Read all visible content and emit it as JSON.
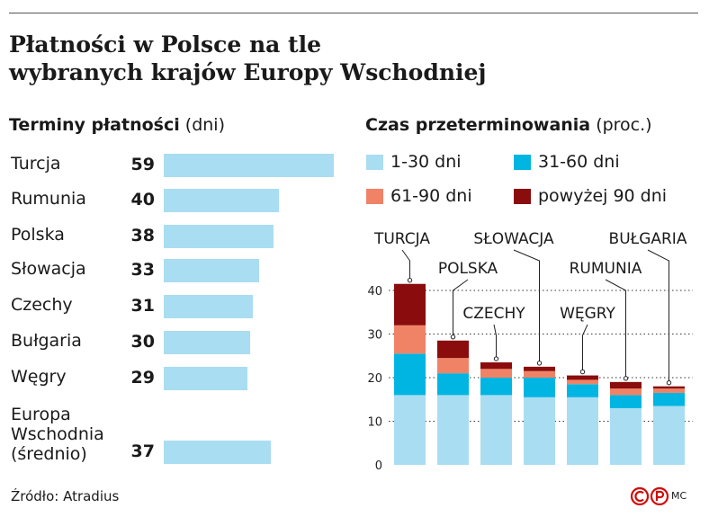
{
  "title_line1": "Płatności w Polsce na tle",
  "title_line2": "wybranych krajów Europy Wschodniej",
  "left_heading": "Terminy płatności",
  "left_unit": "(dni)",
  "right_heading": "Czas przeterminowania",
  "right_unit": "(proc.)",
  "source": "Źródło: Atradius",
  "credit": "MC",
  "colors": {
    "light_blue": "#a9ddf1",
    "cyan": "#00b5e2",
    "salmon": "#f08366",
    "dark_red": "#8a0c0c"
  },
  "chart_data": [
    {
      "type": "bar",
      "title": "Terminy płatności",
      "unit": "(dni)",
      "categories": [
        "Turcja",
        "Rumunia",
        "Polska",
        "Słowacja",
        "Czechy",
        "Bułgaria",
        "Węgry",
        "Europa\nWschodnia\n(średnio)"
      ],
      "values": [
        59,
        40,
        38,
        33,
        31,
        30,
        29,
        37
      ],
      "value_labels": [
        "59",
        "40",
        "38",
        "33",
        "31",
        "30",
        "29",
        "37"
      ],
      "orientation": "horizontal",
      "xlim": [
        0,
        59
      ],
      "grid": false
    },
    {
      "type": "bar",
      "stacked": true,
      "title": "Czas przeterminowania",
      "unit": "(proc.)",
      "categories": [
        "TURCJA",
        "POLSKA",
        "CZECHY",
        "SŁOWACJA",
        "WĘGRY",
        "RUMUNIA",
        "BUŁGARIA"
      ],
      "series": [
        {
          "name": "1-30 dni",
          "values": [
            16,
            16,
            16,
            15.5,
            15.5,
            13,
            13.5
          ]
        },
        {
          "name": "31-60 dni",
          "values": [
            9.5,
            5,
            4,
            4.5,
            3,
            3,
            3
          ]
        },
        {
          "name": "61-90 dni",
          "values": [
            6.5,
            3.5,
            2,
            1.5,
            1,
            1.5,
            1
          ]
        },
        {
          "name": "powyżej 90 dni",
          "values": [
            9.5,
            4,
            1.5,
            1,
            1,
            1.5,
            0.5
          ]
        }
      ],
      "yticks": [
        "0",
        "10",
        "20",
        "30",
        "40"
      ],
      "ylim": [
        0,
        42
      ],
      "grid": "dotted horizontal",
      "legend": "top"
    }
  ]
}
